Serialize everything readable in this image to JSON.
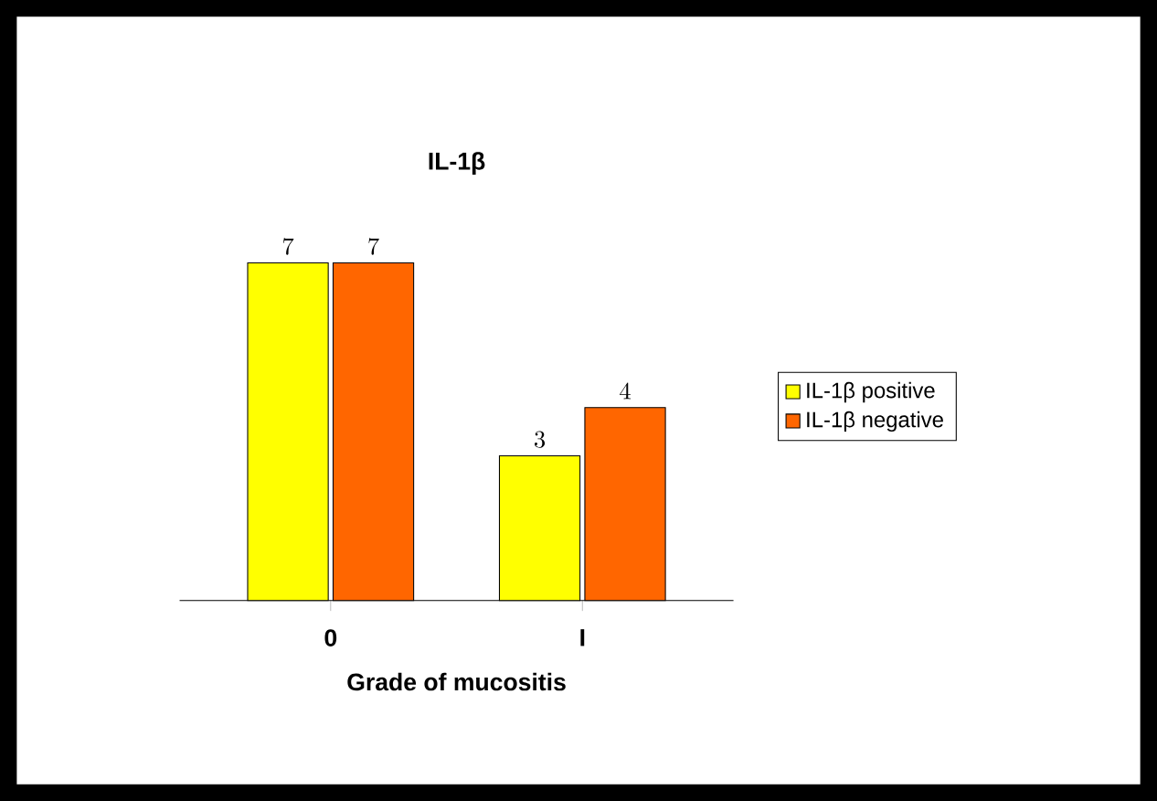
{
  "chart_data": {
    "type": "bar",
    "title": "IL-1β",
    "xlabel": "Grade of mucositis",
    "categories": [
      "0",
      "I"
    ],
    "series": [
      {
        "name": "IL-1β positive",
        "color": "#ffff00",
        "values": [
          7,
          3
        ]
      },
      {
        "name": "IL-1β negative",
        "color": "#ff6600",
        "values": [
          7,
          4
        ]
      }
    ],
    "data_labels": true,
    "legend": "right"
  }
}
